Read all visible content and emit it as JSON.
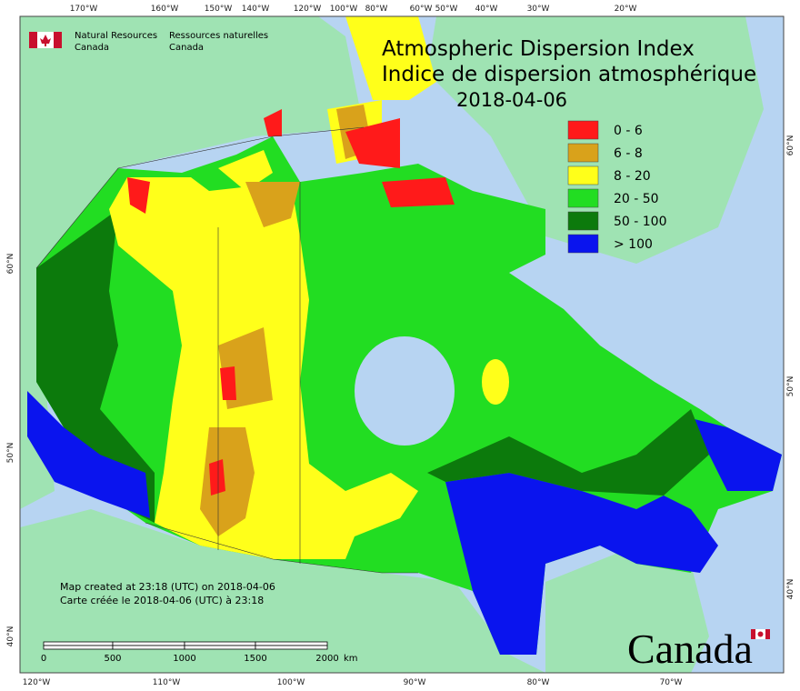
{
  "header": {
    "agency_en": [
      "Natural Resources",
      "Canada"
    ],
    "agency_fr": [
      "Ressources naturelles",
      "Canada"
    ]
  },
  "title": {
    "en": "Atmospheric Dispersion Index",
    "fr": "Indice de dispersion atmosphérique",
    "date": "2018-04-06"
  },
  "legend": [
    {
      "label": "0 - 6",
      "color": "#ff1a1a"
    },
    {
      "label": "6 - 8",
      "color": "#d9a21b"
    },
    {
      "label": "8 - 20",
      "color": "#ffff1a"
    },
    {
      "label": "20 - 50",
      "color": "#22dd22"
    },
    {
      "label": "50 - 100",
      "color": "#0c7a0c"
    },
    {
      "label": "> 100",
      "color": "#0a14ee"
    }
  ],
  "graticule": {
    "top": [
      "170°W",
      "160°W",
      "150°W",
      "140°W",
      "120°W",
      "100°W",
      "80°W",
      "60°W",
      "50°W",
      "40°W",
      "30°W",
      "20°W"
    ],
    "bottom": [
      "120°W",
      "110°W",
      "100°W",
      "90°W",
      "80°W",
      "70°W"
    ],
    "left": [
      "60°N",
      "50°N",
      "40°N"
    ],
    "right": [
      "60°N",
      "50°N",
      "40°N"
    ]
  },
  "footer": {
    "created_en": "Map created at 23:18 (UTC) on 2018-04-06",
    "created_fr": "Carte créée le 2018-04-06 (UTC) à 23:18"
  },
  "scale_bar": {
    "labels": [
      "0",
      "500",
      "1000",
      "1500",
      "2000"
    ],
    "unit": "km"
  },
  "wordmark": "Canada"
}
